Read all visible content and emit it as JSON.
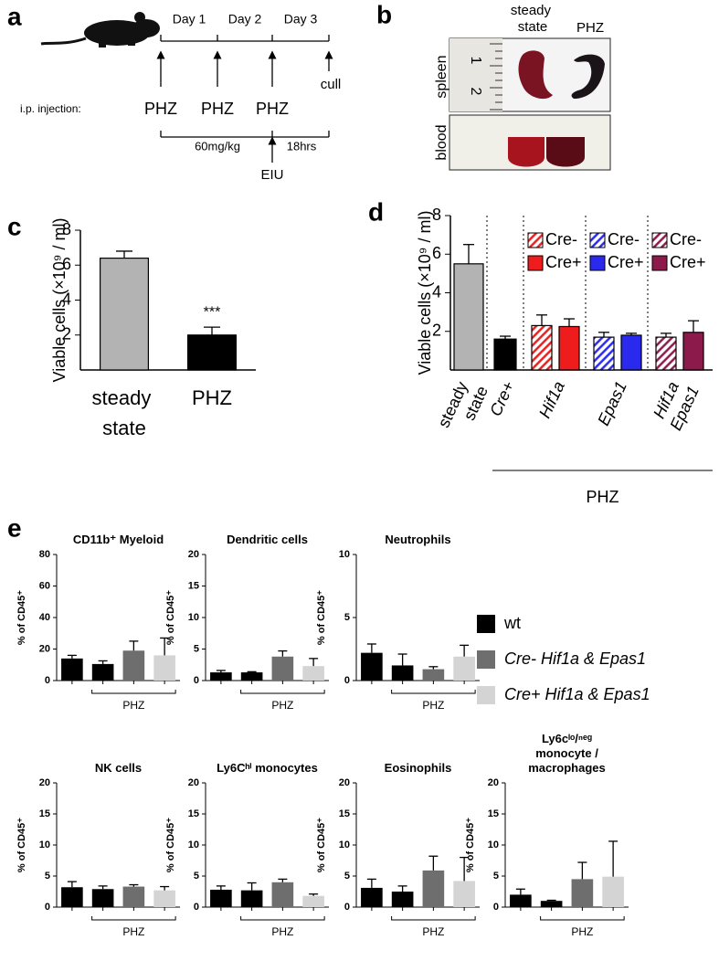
{
  "panel_a": {
    "label": "a",
    "days": [
      "Day 1",
      "Day 2",
      "Day 3"
    ],
    "cull": "cull",
    "injection_label": "i.p. injection:",
    "injections": [
      "PHZ",
      "PHZ",
      "PHZ"
    ],
    "dose": "60mg/kg",
    "interval": "18hrs",
    "eiu": "EIU"
  },
  "panel_b": {
    "label": "b",
    "columns": [
      "steady state",
      "PHZ"
    ],
    "rows": [
      "spleen",
      "blood"
    ],
    "ruler": [
      "1",
      "2"
    ]
  },
  "panel_e": {
    "label": "e",
    "legend": [
      {
        "name": "wt",
        "color": "#000000"
      },
      {
        "name": "Cre- Hif1a & Epas1",
        "color": "#6e6e6e"
      },
      {
        "name": "Cre+ Hif1a & Epas1",
        "color": "#d4d4d4"
      }
    ]
  },
  "chart_data": [
    {
      "type": "bar",
      "panel": "c",
      "ylabel": "Viable cells (×10⁹ / ml)",
      "categories": [
        "steady state",
        "PHZ"
      ],
      "values": [
        6.4,
        2.0
      ],
      "errors": [
        0.4,
        0.45
      ],
      "colors": [
        "#b3b3b3",
        "#000000"
      ],
      "value_annotations": [
        null,
        "***"
      ],
      "ylim": [
        0,
        8
      ],
      "yticks": [
        2,
        4,
        6,
        8
      ]
    },
    {
      "type": "grouped_bar",
      "panel": "d",
      "ylabel": "Viable cells (×10⁹ / ml)",
      "ylim": [
        0,
        8
      ],
      "yticks": [
        2,
        4,
        6,
        8
      ],
      "group_label": "PHZ",
      "categories": [
        {
          "label": "steady state",
          "bars": [
            {
              "value": 5.5,
              "error": 1.0,
              "color": "#b3b3b3"
            }
          ]
        },
        {
          "label": "Cre+",
          "bars": [
            {
              "value": 1.6,
              "error": 0.15,
              "color": "#000000"
            }
          ]
        },
        {
          "label": "Hif1a",
          "bars": [
            {
              "name": "Cre-",
              "value": 2.3,
              "error": 0.55,
              "color": "#e8201e",
              "hatched": true
            },
            {
              "name": "Cre+",
              "value": 2.25,
              "error": 0.4,
              "color": "#ee1c1c"
            }
          ]
        },
        {
          "label": "Epas1",
          "bars": [
            {
              "name": "Cre-",
              "value": 1.7,
              "error": 0.25,
              "color": "#2a2aef",
              "hatched": true
            },
            {
              "name": "Cre+",
              "value": 1.8,
              "error": 0.1,
              "color": "#2a2aef"
            }
          ]
        },
        {
          "label": "Hif1a Epas1",
          "bars": [
            {
              "name": "Cre-",
              "value": 1.7,
              "error": 0.2,
              "color": "#8c1a4b",
              "hatched": true
            },
            {
              "name": "Cre+",
              "value": 1.95,
              "error": 0.6,
              "color": "#8c1a4b"
            }
          ]
        }
      ]
    },
    {
      "type": "bar",
      "title": "CD11b⁺ Myeloid",
      "ylabel": "% of CD45⁺",
      "group_label": "PHZ",
      "values": [
        14,
        10.5,
        19,
        16
      ],
      "errors": [
        2,
        2,
        6,
        11
      ],
      "colors": [
        "#000000",
        "#000000",
        "#6e6e6e",
        "#d4d4d4"
      ],
      "ylim": [
        0,
        80
      ],
      "yticks": [
        0,
        20,
        40,
        60,
        80
      ]
    },
    {
      "type": "bar",
      "title": "Dendritic cells",
      "ylabel": "% of CD45⁺",
      "group_label": "PHZ",
      "values": [
        1.3,
        1.3,
        3.8,
        2.3
      ],
      "errors": [
        0.3,
        0.1,
        0.9,
        1.2
      ],
      "colors": [
        "#000000",
        "#000000",
        "#6e6e6e",
        "#d4d4d4"
      ],
      "ylim": [
        0,
        20
      ],
      "yticks": [
        0,
        5,
        10,
        15,
        20
      ]
    },
    {
      "type": "bar",
      "title": "Neutrophils",
      "ylabel": "% of CD45⁺",
      "group_label": "PHZ",
      "values": [
        2.2,
        1.2,
        0.9,
        1.9
      ],
      "errors": [
        0.7,
        0.9,
        0.2,
        0.9
      ],
      "colors": [
        "#000000",
        "#000000",
        "#6e6e6e",
        "#d4d4d4"
      ],
      "ylim": [
        0,
        10
      ],
      "yticks": [
        0,
        5,
        10
      ]
    },
    {
      "type": "bar",
      "title": "NK cells",
      "ylabel": "% of CD45⁺",
      "group_label": "PHZ",
      "values": [
        3.2,
        2.9,
        3.3,
        2.7
      ],
      "errors": [
        0.9,
        0.5,
        0.3,
        0.6
      ],
      "colors": [
        "#000000",
        "#000000",
        "#6e6e6e",
        "#d4d4d4"
      ],
      "ylim": [
        0,
        20
      ],
      "yticks": [
        0,
        5,
        10,
        15,
        20
      ]
    },
    {
      "type": "bar",
      "title": "Ly6Cʰⁱ monocytes",
      "ylabel": "% of CD45⁺",
      "group_label": "PHZ",
      "values": [
        2.8,
        2.7,
        4.0,
        1.8
      ],
      "errors": [
        0.6,
        1.2,
        0.5,
        0.3
      ],
      "colors": [
        "#000000",
        "#000000",
        "#6e6e6e",
        "#d4d4d4"
      ],
      "ylim": [
        0,
        20
      ],
      "yticks": [
        0,
        5,
        10,
        15,
        20
      ]
    },
    {
      "type": "bar",
      "title": "Eosinophils",
      "ylabel": "% of CD45⁺",
      "group_label": "PHZ",
      "values": [
        3.1,
        2.5,
        5.9,
        4.2
      ],
      "errors": [
        1.4,
        0.9,
        2.3,
        3.8
      ],
      "colors": [
        "#000000",
        "#000000",
        "#6e6e6e",
        "#d4d4d4"
      ],
      "ylim": [
        0,
        20
      ],
      "yticks": [
        0,
        5,
        10,
        15,
        20
      ]
    },
    {
      "type": "bar",
      "title": "Ly6cˡᵒ/ⁿᵉᵍ monocyte / macrophages",
      "ylabel": "% of CD45⁺",
      "group_label": "PHZ",
      "values": [
        2.0,
        1.0,
        4.5,
        4.9
      ],
      "errors": [
        0.9,
        0.1,
        2.7,
        5.7
      ],
      "colors": [
        "#000000",
        "#000000",
        "#6e6e6e",
        "#d4d4d4"
      ],
      "ylim": [
        0,
        20
      ],
      "yticks": [
        0,
        5,
        10,
        15,
        20
      ]
    }
  ]
}
